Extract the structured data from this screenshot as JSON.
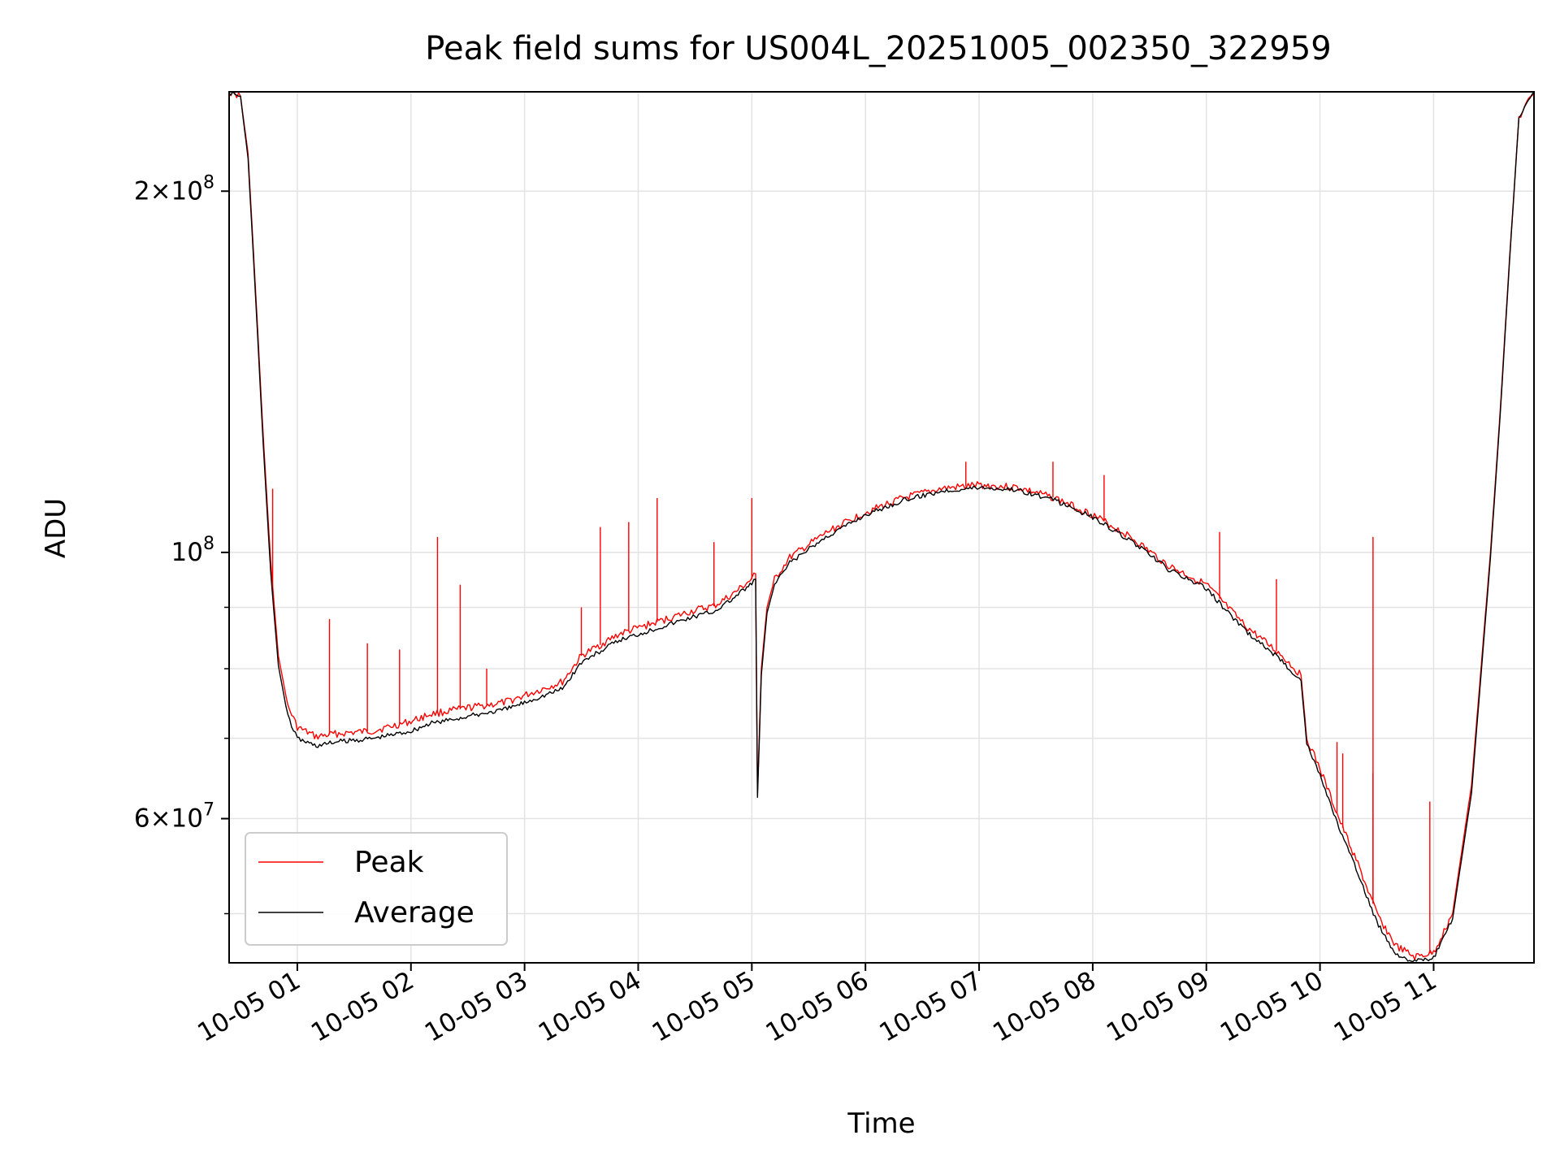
{
  "chart_data": {
    "type": "line",
    "title": "Peak field sums for US004L_20251005_002350_322959",
    "xlabel": "Time",
    "ylabel": "ADU",
    "x_axis": "time",
    "xlim": [
      "2025-10-05 00:24",
      "2025-10-05 11:53"
    ],
    "ylim": [
      45500000,
      242000000
    ],
    "yscale": "log",
    "grid": true,
    "legend_position": "lower-left",
    "x_ticks": [
      {
        "value": "2025-10-05 01:00",
        "label": "10-05 01"
      },
      {
        "value": "2025-10-05 02:00",
        "label": "10-05 02"
      },
      {
        "value": "2025-10-05 03:00",
        "label": "10-05 03"
      },
      {
        "value": "2025-10-05 04:00",
        "label": "10-05 04"
      },
      {
        "value": "2025-10-05 05:00",
        "label": "10-05 05"
      },
      {
        "value": "2025-10-05 06:00",
        "label": "10-05 06"
      },
      {
        "value": "2025-10-05 07:00",
        "label": "10-05 07"
      },
      {
        "value": "2025-10-05 08:00",
        "label": "10-05 08"
      },
      {
        "value": "2025-10-05 09:00",
        "label": "10-05 09"
      },
      {
        "value": "2025-10-05 10:00",
        "label": "10-05 10"
      },
      {
        "value": "2025-10-05 11:00",
        "label": "10-05 11"
      }
    ],
    "y_ticks": [
      {
        "value": 200000000,
        "mantissa": "2",
        "exponent": "8"
      },
      {
        "value": 100000000,
        "mantissa": "",
        "exponent": "8"
      },
      {
        "value": 60000000,
        "mantissa": "6",
        "exponent": "7"
      }
    ],
    "y_minor_ticks": [
      50000000,
      70000000,
      80000000,
      90000000
    ],
    "series": [
      {
        "name": "Peak",
        "color": "#ff0000",
        "x": [
          "2025-10-05 00:24",
          "2025-10-05 00:30",
          "2025-10-05 00:34",
          "2025-10-05 00:38",
          "2025-10-05 00:42",
          "2025-10-05 00:46",
          "2025-10-05 00:50",
          "2025-10-05 00:55",
          "2025-10-05 01:00",
          "2025-10-05 01:10",
          "2025-10-05 01:20",
          "2025-10-05 01:40",
          "2025-10-05 02:00",
          "2025-10-05 02:10",
          "2025-10-05 02:30",
          "2025-10-05 02:50",
          "2025-10-05 03:00",
          "2025-10-05 03:20",
          "2025-10-05 03:30",
          "2025-10-05 03:50",
          "2025-10-05 04:10",
          "2025-10-05 04:30",
          "2025-10-05 04:40",
          "2025-10-05 04:50",
          "2025-10-05 05:00",
          "2025-10-05 05:02",
          "2025-10-05 05:03",
          "2025-10-05 05:05",
          "2025-10-05 05:08",
          "2025-10-05 05:12",
          "2025-10-05 05:20",
          "2025-10-05 05:40",
          "2025-10-05 06:00",
          "2025-10-05 06:20",
          "2025-10-05 06:40",
          "2025-10-05 07:00",
          "2025-10-05 07:20",
          "2025-10-05 07:40",
          "2025-10-05 08:00",
          "2025-10-05 08:20",
          "2025-10-05 08:40",
          "2025-10-05 09:00",
          "2025-10-05 09:20",
          "2025-10-05 09:40",
          "2025-10-05 09:50",
          "2025-10-05 09:53",
          "2025-10-05 10:00",
          "2025-10-05 10:10",
          "2025-10-05 10:20",
          "2025-10-05 10:30",
          "2025-10-05 10:40",
          "2025-10-05 10:50",
          "2025-10-05 11:00",
          "2025-10-05 11:10",
          "2025-10-05 11:20",
          "2025-10-05 11:30",
          "2025-10-05 11:35",
          "2025-10-05 11:40",
          "2025-10-05 11:45",
          "2025-10-05 11:53"
        ],
        "values": [
          242000000,
          240000000,
          215000000,
          165000000,
          125000000,
          98000000,
          82000000,
          74500000,
          71500000,
          70200000,
          70600000,
          71000000,
          72300000,
          73300000,
          74200000,
          75000000,
          76000000,
          78000000,
          82000000,
          85500000,
          87500000,
          89500000,
          90200000,
          92300000,
          95000000,
          96000000,
          63000000,
          80000000,
          90000000,
          95000000,
          99000000,
          104000000,
          108000000,
          111000000,
          113000000,
          113800000,
          113300000,
          111000000,
          107500000,
          103000000,
          97500000,
          94000000,
          87000000,
          82000000,
          79000000,
          70000000,
          66000000,
          60000000,
          55000000,
          50000000,
          47000000,
          46000000,
          46400000,
          50000000,
          64000000,
          100000000,
          130000000,
          175000000,
          230000000,
          242000000
        ],
        "spikes": [
          {
            "x": "2025-10-05 00:47",
            "value": 113000000
          },
          {
            "x": "2025-10-05 01:17",
            "value": 88000000
          },
          {
            "x": "2025-10-05 01:37",
            "value": 84000000
          },
          {
            "x": "2025-10-05 01:54",
            "value": 83000000
          },
          {
            "x": "2025-10-05 02:14",
            "value": 103000000
          },
          {
            "x": "2025-10-05 02:26",
            "value": 94000000
          },
          {
            "x": "2025-10-05 02:40",
            "value": 80000000
          },
          {
            "x": "2025-10-05 03:30",
            "value": 90000000
          },
          {
            "x": "2025-10-05 03:40",
            "value": 105000000
          },
          {
            "x": "2025-10-05 03:55",
            "value": 106000000
          },
          {
            "x": "2025-10-05 04:10",
            "value": 111000000
          },
          {
            "x": "2025-10-05 04:40",
            "value": 102000000
          },
          {
            "x": "2025-10-05 05:00",
            "value": 111000000
          },
          {
            "x": "2025-10-05 06:53",
            "value": 119000000
          },
          {
            "x": "2025-10-05 07:39",
            "value": 119000000
          },
          {
            "x": "2025-10-05 08:06",
            "value": 116000000
          },
          {
            "x": "2025-10-05 09:07",
            "value": 104000000
          },
          {
            "x": "2025-10-05 09:37",
            "value": 95000000
          },
          {
            "x": "2025-10-05 10:09",
            "value": 69500000
          },
          {
            "x": "2025-10-05 10:12",
            "value": 68000000
          },
          {
            "x": "2025-10-05 10:28",
            "value": 103000000
          },
          {
            "x": "2025-10-05 10:28",
            "value": 65500000
          },
          {
            "x": "2025-10-05 10:58",
            "value": 62000000
          }
        ]
      },
      {
        "name": "Average",
        "color": "#000000",
        "x": [
          "2025-10-05 00:24",
          "2025-10-05 00:30",
          "2025-10-05 00:34",
          "2025-10-05 00:38",
          "2025-10-05 00:42",
          "2025-10-05 00:46",
          "2025-10-05 00:50",
          "2025-10-05 00:55",
          "2025-10-05 01:00",
          "2025-10-05 01:10",
          "2025-10-05 01:20",
          "2025-10-05 01:40",
          "2025-10-05 02:00",
          "2025-10-05 02:10",
          "2025-10-05 02:30",
          "2025-10-05 02:50",
          "2025-10-05 03:00",
          "2025-10-05 03:20",
          "2025-10-05 03:30",
          "2025-10-05 03:50",
          "2025-10-05 04:10",
          "2025-10-05 04:30",
          "2025-10-05 04:40",
          "2025-10-05 04:50",
          "2025-10-05 05:00",
          "2025-10-05 05:02",
          "2025-10-05 05:03",
          "2025-10-05 05:05",
          "2025-10-05 05:08",
          "2025-10-05 05:12",
          "2025-10-05 05:20",
          "2025-10-05 05:40",
          "2025-10-05 06:00",
          "2025-10-05 06:20",
          "2025-10-05 06:40",
          "2025-10-05 07:00",
          "2025-10-05 07:20",
          "2025-10-05 07:40",
          "2025-10-05 08:00",
          "2025-10-05 08:20",
          "2025-10-05 08:40",
          "2025-10-05 09:00",
          "2025-10-05 09:20",
          "2025-10-05 09:40",
          "2025-10-05 09:50",
          "2025-10-05 09:53",
          "2025-10-05 10:00",
          "2025-10-05 10:10",
          "2025-10-05 10:20",
          "2025-10-05 10:30",
          "2025-10-05 10:40",
          "2025-10-05 10:50",
          "2025-10-05 11:00",
          "2025-10-05 11:10",
          "2025-10-05 11:20",
          "2025-10-05 11:30",
          "2025-10-05 11:35",
          "2025-10-05 11:40",
          "2025-10-05 11:45",
          "2025-10-05 11:53"
        ],
        "values": [
          242000000,
          240000000,
          213000000,
          163000000,
          123000000,
          96000000,
          80500000,
          73000000,
          70000000,
          69000000,
          69500000,
          70000000,
          71000000,
          72000000,
          73000000,
          74000000,
          75000000,
          77000000,
          81000000,
          84500000,
          86500000,
          88500000,
          89300000,
          91500000,
          94200000,
          95000000,
          62500000,
          79000000,
          89000000,
          94000000,
          98000000,
          103200000,
          107500000,
          110500000,
          112500000,
          113300000,
          112800000,
          110500000,
          107000000,
          102300000,
          96800000,
          93300000,
          86200000,
          81200000,
          78200000,
          69300000,
          65200000,
          59000000,
          54000000,
          49200000,
          46300000,
          45600000,
          45900000,
          49500000,
          63000000,
          99000000,
          129000000,
          174000000,
          230000000,
          242000000
        ]
      }
    ]
  }
}
